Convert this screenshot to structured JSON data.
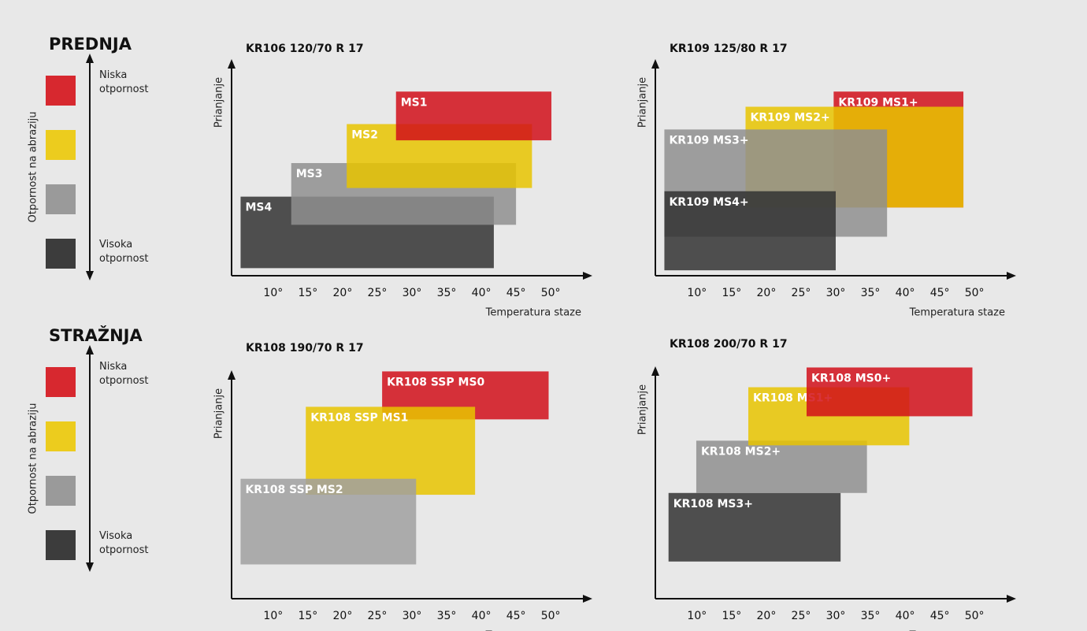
{
  "legends": [
    {
      "title": "PREDNJA",
      "axis_label": "Otpornost na abraziju",
      "top_label": "Niska otpornost",
      "bottom_label": "Visoka otpornost",
      "colors": [
        "#d7282f",
        "#eccc1e",
        "#9a9a9a",
        "#3c3c3c"
      ]
    },
    {
      "title": "STRAŽNJA",
      "axis_label": "Otpornost na abraziju",
      "top_label": "Niska otpornost",
      "bottom_label": "Visoka otpornost",
      "colors": [
        "#d7282f",
        "#eccc1e",
        "#9a9a9a",
        "#3c3c3c"
      ]
    }
  ],
  "chart_data": [
    {
      "type": "range",
      "title": "KR106  120/70 R 17",
      "x_label": "Temperatura staze",
      "y_label": "Prianjanje",
      "xlim": [
        4,
        56
      ],
      "ylim": [
        0,
        100
      ],
      "xticks": [
        {
          "value": 10,
          "label": "10°"
        },
        {
          "value": 15,
          "label": "15°"
        },
        {
          "value": 20,
          "label": "20°"
        },
        {
          "value": 25,
          "label": "25°"
        },
        {
          "value": 30,
          "label": "30°"
        },
        {
          "value": 35,
          "label": "35°"
        },
        {
          "value": 40,
          "label": "40°"
        },
        {
          "value": 45,
          "label": "45°"
        },
        {
          "value": 50,
          "label": "50°"
        }
      ],
      "series": [
        {
          "name": "MS4",
          "color": "#333333",
          "x": [
            5.3,
            41.8
          ],
          "values": [
            3.5,
            36.5
          ]
        },
        {
          "name": "MS3",
          "color": "#8f8f8f",
          "x": [
            12.6,
            45
          ],
          "values": [
            23.5,
            52
          ]
        },
        {
          "name": "MS2",
          "color": "#e8c400",
          "x": [
            20.6,
            47.3
          ],
          "values": [
            40.5,
            70
          ]
        },
        {
          "name": "MS1",
          "color": "#d10f1a",
          "x": [
            27.7,
            50.1
          ],
          "values": [
            62.5,
            85
          ]
        }
      ]
    },
    {
      "type": "range",
      "title": "KR109  125/80 R 17",
      "x_label": "Temperatura staze",
      "y_label": "Prianjanje",
      "xlim": [
        4,
        56
      ],
      "ylim": [
        0,
        100
      ],
      "xticks": [
        {
          "value": 10,
          "label": "10°"
        },
        {
          "value": 15,
          "label": "15°"
        },
        {
          "value": 20,
          "label": "20°"
        },
        {
          "value": 25,
          "label": "25°"
        },
        {
          "value": 30,
          "label": "30°"
        },
        {
          "value": 35,
          "label": "35°"
        },
        {
          "value": 40,
          "label": "40°"
        },
        {
          "value": 45,
          "label": "45°"
        },
        {
          "value": 50,
          "label": "50°"
        }
      ],
      "series": [
        {
          "name": "KR109 MS1+",
          "color": "#d10f1a",
          "x": [
            29.7,
            48.4
          ],
          "values": [
            31.5,
            85
          ]
        },
        {
          "name": "KR109 MS2+",
          "color": "#e8c400",
          "x": [
            17,
            48.4
          ],
          "values": [
            31.5,
            78
          ]
        },
        {
          "name": "KR109 MS3+",
          "color": "#8f8f8f",
          "x": [
            5.3,
            37.4
          ],
          "values": [
            18,
            67.5
          ]
        },
        {
          "name": "KR109 MS4+",
          "color": "#333333",
          "x": [
            5.3,
            30
          ],
          "values": [
            2.5,
            39
          ]
        }
      ]
    },
    {
      "type": "range",
      "title": "KR108  190/70 R 17",
      "x_label": "Temperatura staze",
      "y_label": "Prianjanje",
      "xlim": [
        4,
        56
      ],
      "ylim": [
        0,
        100
      ],
      "xticks": [
        {
          "value": 10,
          "label": "10°"
        },
        {
          "value": 15,
          "label": "15°"
        },
        {
          "value": 20,
          "label": "20°"
        },
        {
          "value": 25,
          "label": "25°"
        },
        {
          "value": 30,
          "label": "30°"
        },
        {
          "value": 35,
          "label": "35°"
        },
        {
          "value": 40,
          "label": "40°"
        },
        {
          "value": 45,
          "label": "45°"
        },
        {
          "value": 50,
          "label": "50°"
        }
      ],
      "series": [
        {
          "name": "KR108 SSP MS0",
          "color": "#d10f1a",
          "x": [
            25.7,
            49.7
          ],
          "values": [
            78.5,
            99.5
          ]
        },
        {
          "name": "KR108 SSP MS1",
          "color": "#e8c400",
          "x": [
            14.7,
            39.1
          ],
          "values": [
            45.5,
            84
          ]
        },
        {
          "name": "KR108 SSP MS2",
          "color": "#a0a0a0",
          "x": [
            5.3,
            30.6
          ],
          "values": [
            15,
            52.5
          ]
        }
      ]
    },
    {
      "type": "range",
      "title": "KR108  200/70 R 17",
      "x_label": "Temperatura staze",
      "y_label": "Prianjanje",
      "xlim": [
        4,
        56
      ],
      "ylim": [
        0,
        100
      ],
      "xticks": [
        {
          "value": 10,
          "label": "10°"
        },
        {
          "value": 15,
          "label": "15°"
        },
        {
          "value": 20,
          "label": "20°"
        },
        {
          "value": 25,
          "label": "25°"
        },
        {
          "value": 30,
          "label": "30°"
        },
        {
          "value": 35,
          "label": "35°"
        },
        {
          "value": 40,
          "label": "40°"
        },
        {
          "value": 45,
          "label": "45°"
        },
        {
          "value": 50,
          "label": "50°"
        }
      ],
      "series": [
        {
          "name": "KR108 MS3+",
          "color": "#333333",
          "x": [
            5.9,
            30.7
          ],
          "values": [
            16,
            45.5
          ]
        },
        {
          "name": "KR108 MS2+",
          "color": "#8f8f8f",
          "x": [
            9.9,
            34.5
          ],
          "values": [
            45.5,
            68
          ]
        },
        {
          "name": "KR108 MS1+",
          "color": "#e8c400",
          "x": [
            17.4,
            40.6
          ],
          "values": [
            66,
            91
          ]
        },
        {
          "name": "KR108 MS0+",
          "color": "#d10f1a",
          "x": [
            25.8,
            49.7
          ],
          "values": [
            78.5,
            99.5
          ]
        }
      ]
    }
  ]
}
